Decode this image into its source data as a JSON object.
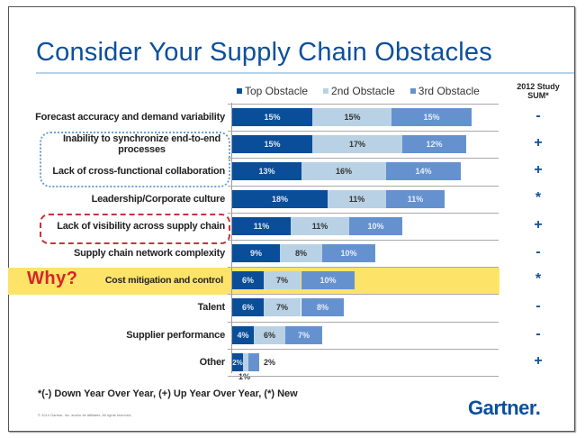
{
  "title": "Consider Your Supply Chain Obstacles",
  "study_header": [
    "2012 Study",
    "SUM*"
  ],
  "annotation": "Why?",
  "footnote": "*(-) Down Year Over Year, (+) Up Year Over Year, (*) New",
  "copyright": "© 2014 Gartner, Inc. and/or its affiliates. All rights reserved.",
  "logo": "Gartner.",
  "colors": {
    "top": "#0a4d99",
    "second": "#b8d1e4",
    "third": "#6592cf",
    "highlight": "#fde468",
    "annotation": "#d6232a"
  },
  "chart_data": {
    "type": "bar",
    "orientation": "horizontal",
    "stacked": true,
    "title": "Consider Your Supply Chain Obstacles",
    "legend_position": "top",
    "categories": [
      "Forecast accuracy and demand variability",
      "Inability to synchronize end-to-end processes",
      "Lack of cross-functional collaboration",
      "Leadership/Corporate culture",
      "Lack of visibility across supply chain",
      "Supply chain network complexity",
      "Cost mitigation and control",
      "Talent",
      "Supplier performance",
      "Other"
    ],
    "series": [
      {
        "name": "Top Obstacle",
        "values": [
          15,
          15,
          13,
          18,
          11,
          9,
          6,
          6,
          4,
          2
        ]
      },
      {
        "name": "2nd Obstacle",
        "values": [
          15,
          17,
          16,
          11,
          11,
          8,
          7,
          7,
          6,
          1
        ]
      },
      {
        "name": "3rd Obstacle",
        "values": [
          15,
          12,
          14,
          11,
          10,
          10,
          10,
          8,
          7,
          2
        ]
      }
    ],
    "labels": {
      "top": [
        "15%",
        "15%",
        "13%",
        "18%",
        "11%",
        "9%",
        "6%",
        "6%",
        "4%",
        "2%"
      ],
      "second": [
        "15%",
        "17%",
        "16%",
        "11%",
        "11%",
        "8%",
        "7%",
        "7%",
        "6%",
        "1%"
      ],
      "third": [
        "15%",
        "12%",
        "14%",
        "11%",
        "10%",
        "10%",
        "10%",
        "8%",
        "7%",
        "2%"
      ]
    },
    "study_2012_sum": [
      "-",
      "+",
      "+",
      "*",
      "+",
      "-",
      "*",
      "-",
      "-",
      "+"
    ],
    "highlighted_category": "Cost mitigation and control",
    "grouped_blue_dotted": [
      "Inability to synchronize end-to-end processes",
      "Lack of cross-functional collaboration"
    ],
    "grouped_red_dashed": [
      "Lack of visibility across supply chain"
    ],
    "unit": "%"
  }
}
